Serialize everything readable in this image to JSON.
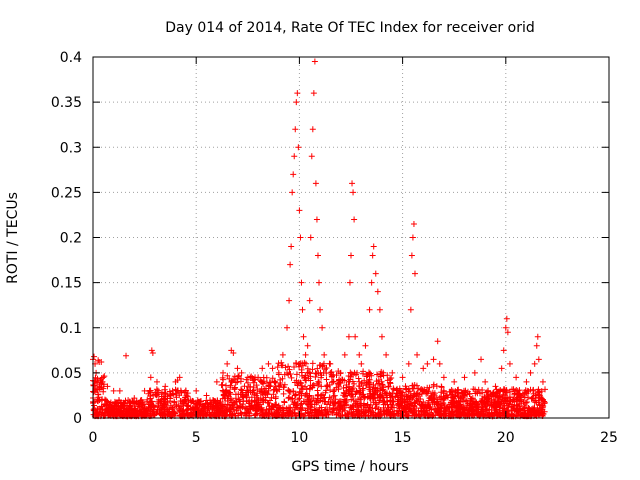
{
  "chart_data": {
    "type": "scatter",
    "title": "Day 014 of 2014, Rate Of TEC Index for receiver orid",
    "xlabel": "GPS time / hours",
    "ylabel": "ROTI / TECUs",
    "xlim": [
      0,
      25
    ],
    "ylim": [
      0,
      0.4
    ],
    "xticks": [
      "0",
      "5",
      "10",
      "15",
      "20",
      "25"
    ],
    "yticks": [
      "0",
      "0.05",
      "0.1",
      "0.15",
      "0.2",
      "0.25",
      "0.3",
      "0.35",
      "0.4"
    ],
    "grid": true,
    "marker": "+",
    "series": [
      {
        "name": "ROTI",
        "color": "#ff0000",
        "points": [
          [
            0.0,
            0.065
          ],
          [
            0.05,
            0.068
          ],
          [
            0.1,
            0.06
          ],
          [
            0.15,
            0.05
          ],
          [
            0.2,
            0.04
          ],
          [
            0.25,
            0.064
          ],
          [
            0.3,
            0.062
          ],
          [
            0.4,
            0.062
          ],
          [
            0.5,
            0.045
          ],
          [
            0.7,
            0.035
          ],
          [
            1.0,
            0.03
          ],
          [
            1.3,
            0.03
          ],
          [
            1.6,
            0.069
          ],
          [
            2.0,
            0.022
          ],
          [
            2.5,
            0.03
          ],
          [
            2.8,
            0.045
          ],
          [
            2.85,
            0.075
          ],
          [
            2.9,
            0.072
          ],
          [
            3.1,
            0.04
          ],
          [
            3.5,
            0.035
          ],
          [
            4.0,
            0.04
          ],
          [
            4.1,
            0.042
          ],
          [
            4.2,
            0.045
          ],
          [
            4.5,
            0.03
          ],
          [
            5.0,
            0.03
          ],
          [
            5.5,
            0.025
          ],
          [
            6.0,
            0.04
          ],
          [
            6.3,
            0.05
          ],
          [
            6.5,
            0.06
          ],
          [
            6.7,
            0.075
          ],
          [
            6.8,
            0.072
          ],
          [
            7.0,
            0.055
          ],
          [
            7.2,
            0.05
          ],
          [
            7.5,
            0.045
          ],
          [
            8.0,
            0.045
          ],
          [
            8.2,
            0.055
          ],
          [
            8.5,
            0.06
          ],
          [
            8.7,
            0.055
          ],
          [
            9.0,
            0.05
          ],
          [
            9.2,
            0.07
          ],
          [
            9.4,
            0.1
          ],
          [
            9.5,
            0.13
          ],
          [
            9.55,
            0.17
          ],
          [
            9.6,
            0.19
          ],
          [
            9.65,
            0.25
          ],
          [
            9.7,
            0.27
          ],
          [
            9.75,
            0.29
          ],
          [
            9.8,
            0.32
          ],
          [
            9.85,
            0.35
          ],
          [
            9.9,
            0.36
          ],
          [
            9.95,
            0.3
          ],
          [
            10.0,
            0.23
          ],
          [
            10.05,
            0.2
          ],
          [
            10.1,
            0.15
          ],
          [
            10.15,
            0.12
          ],
          [
            10.2,
            0.09
          ],
          [
            10.3,
            0.07
          ],
          [
            10.4,
            0.08
          ],
          [
            10.5,
            0.13
          ],
          [
            10.55,
            0.2
          ],
          [
            10.6,
            0.29
          ],
          [
            10.65,
            0.32
          ],
          [
            10.7,
            0.36
          ],
          [
            10.75,
            0.395
          ],
          [
            10.8,
            0.26
          ],
          [
            10.85,
            0.22
          ],
          [
            10.9,
            0.18
          ],
          [
            10.95,
            0.15
          ],
          [
            11.0,
            0.12
          ],
          [
            11.1,
            0.1
          ],
          [
            11.2,
            0.07
          ],
          [
            11.5,
            0.05
          ],
          [
            12.0,
            0.05
          ],
          [
            12.2,
            0.07
          ],
          [
            12.4,
            0.09
          ],
          [
            12.45,
            0.15
          ],
          [
            12.5,
            0.18
          ],
          [
            12.55,
            0.26
          ],
          [
            12.6,
            0.25
          ],
          [
            12.65,
            0.22
          ],
          [
            12.7,
            0.09
          ],
          [
            12.9,
            0.07
          ],
          [
            13.0,
            0.06
          ],
          [
            13.2,
            0.08
          ],
          [
            13.4,
            0.12
          ],
          [
            13.5,
            0.15
          ],
          [
            13.55,
            0.18
          ],
          [
            13.6,
            0.19
          ],
          [
            13.7,
            0.16
          ],
          [
            13.8,
            0.14
          ],
          [
            13.9,
            0.12
          ],
          [
            14.0,
            0.09
          ],
          [
            14.2,
            0.07
          ],
          [
            14.5,
            0.05
          ],
          [
            15.0,
            0.045
          ],
          [
            15.3,
            0.06
          ],
          [
            15.4,
            0.12
          ],
          [
            15.45,
            0.18
          ],
          [
            15.5,
            0.2
          ],
          [
            15.55,
            0.215
          ],
          [
            15.6,
            0.16
          ],
          [
            15.7,
            0.07
          ],
          [
            16.0,
            0.055
          ],
          [
            16.2,
            0.06
          ],
          [
            16.5,
            0.065
          ],
          [
            16.7,
            0.085
          ],
          [
            16.8,
            0.06
          ],
          [
            17.0,
            0.045
          ],
          [
            17.5,
            0.04
          ],
          [
            18.0,
            0.045
          ],
          [
            18.5,
            0.05
          ],
          [
            18.8,
            0.065
          ],
          [
            19.0,
            0.04
          ],
          [
            19.5,
            0.035
          ],
          [
            19.8,
            0.055
          ],
          [
            19.9,
            0.075
          ],
          [
            20.0,
            0.1
          ],
          [
            20.05,
            0.11
          ],
          [
            20.1,
            0.095
          ],
          [
            20.2,
            0.06
          ],
          [
            20.5,
            0.045
          ],
          [
            21.0,
            0.04
          ],
          [
            21.2,
            0.05
          ],
          [
            21.4,
            0.06
          ],
          [
            21.5,
            0.08
          ],
          [
            21.55,
            0.09
          ],
          [
            21.6,
            0.065
          ],
          [
            21.8,
            0.04
          ]
        ]
      }
    ]
  }
}
